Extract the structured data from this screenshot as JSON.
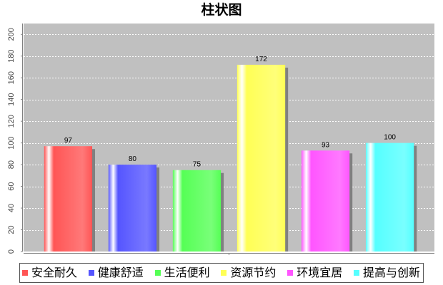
{
  "chart_data": {
    "type": "bar",
    "title": "柱状图",
    "categories": [
      "安全耐久",
      "健康舒适",
      "生活便利",
      "资源节约",
      "环境宜居",
      "提高与创新"
    ],
    "values": [
      97,
      80,
      75,
      172,
      93,
      100
    ],
    "colors": [
      "#ff5555",
      "#5555ff",
      "#55ff55",
      "#ffff55",
      "#ff55ff",
      "#55ffff"
    ],
    "ylim": [
      0,
      210
    ],
    "yticks": [
      0,
      20,
      40,
      60,
      80,
      100,
      120,
      140,
      160,
      180,
      200
    ],
    "grid": true,
    "legend": "bottom",
    "data_labels": true,
    "plot_background": "#c0c0c0",
    "gridline_color": "#ffffff",
    "shadow_color": "#808080"
  }
}
